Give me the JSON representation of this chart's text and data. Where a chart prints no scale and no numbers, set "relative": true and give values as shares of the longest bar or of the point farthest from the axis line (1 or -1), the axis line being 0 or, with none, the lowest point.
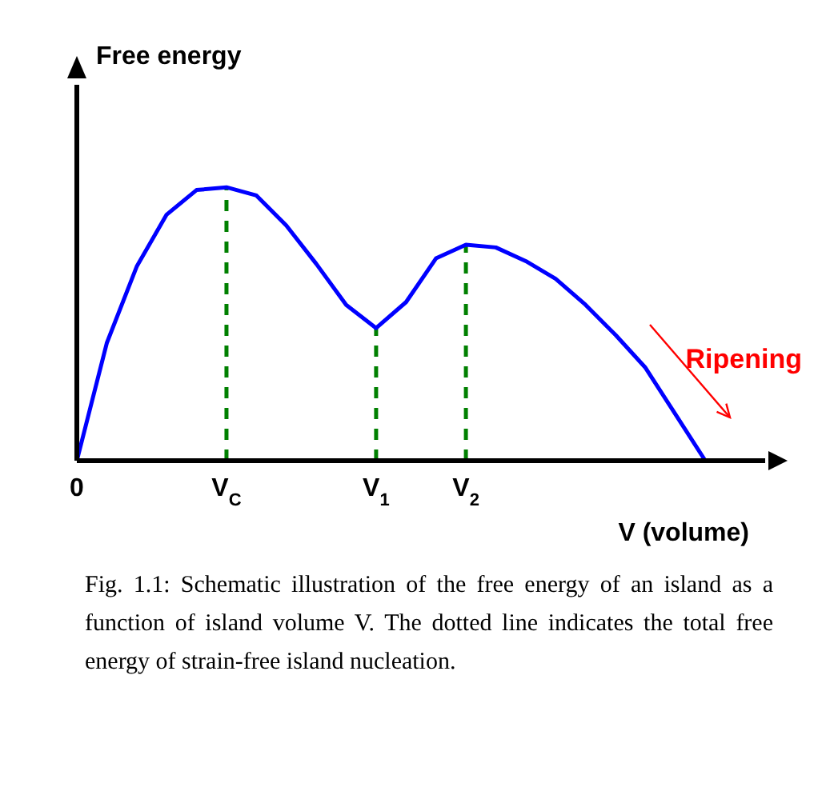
{
  "chart_data": {
    "type": "line",
    "relative": true,
    "ylabel": "Free energy",
    "xlabel": "V (volume)",
    "categories": [
      "0",
      null,
      null,
      null,
      null,
      "V$_{C}$",
      null,
      null,
      null,
      null,
      "V$_{1}$",
      null,
      null,
      "V$_{2}$",
      null,
      null,
      null,
      null,
      null,
      null,
      null,
      null,
      null,
      null
    ],
    "series": [
      {
        "color": "#0000ff",
        "values": [
          0,
          0.43,
          0.71,
          0.9,
          0.99,
          1,
          0.97,
          0.86,
          0.72,
          0.57,
          0.485,
          0.58,
          0.74,
          0.79,
          0.78,
          0.73,
          0.665,
          0.57,
          0.46,
          0.34,
          0.17,
          0.0,
          null,
          null
        ]
      }
    ],
    "ref_lines": [
      {
        "axis": "x",
        "value": "V$_{C}$",
        "color": "#008000",
        "line_style": "dashed"
      },
      {
        "axis": "x",
        "value": "V$_{1}$",
        "color": "#008000",
        "line_style": "dashed"
      },
      {
        "axis": "x",
        "value": "V$_{2}$",
        "color": "#008000",
        "line_style": "dashed"
      }
    ],
    "annotations": [
      "Ripening",
      "Fig. 1.1: Schematic illustration of the free energy of an island as a function of island volume V. The dotted line indicates the total free energy of strain-free island nucleation."
    ],
    "grid": false,
    "legend": false,
    "marker": "none",
    "line_style": "solid"
  }
}
